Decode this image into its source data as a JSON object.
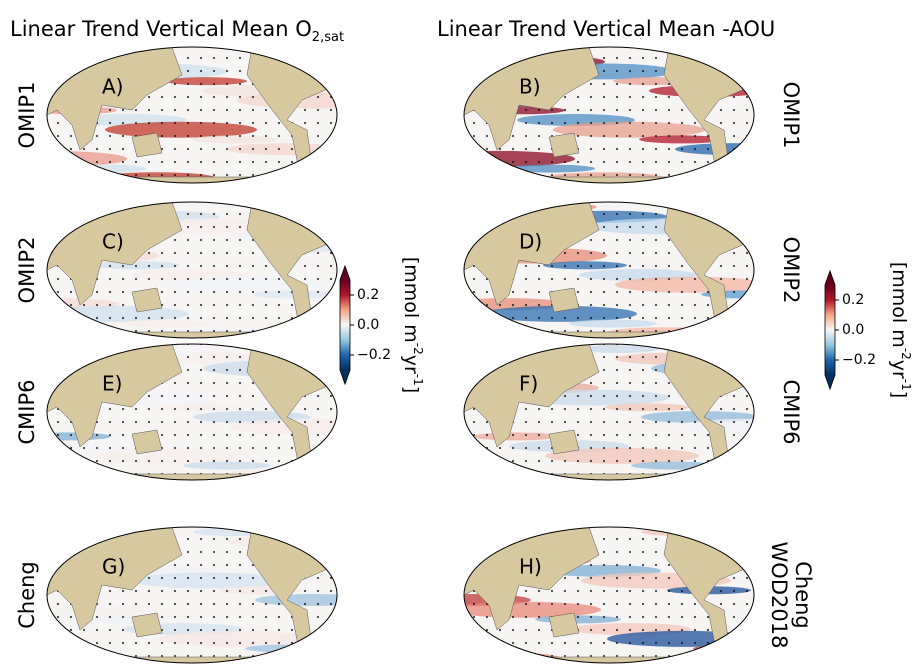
{
  "titles": [
    {
      "text": "Linear Trend Vertical Mean O",
      "subscript": "2,sat"
    },
    {
      "text": "Linear Trend Vertical Mean -AOU"
    }
  ],
  "panels": [
    {
      "letter": "A)",
      "label": [
        "OMIP1"
      ]
    },
    {
      "letter": "B)",
      "label": [
        "OMIP1"
      ]
    },
    {
      "letter": "C)",
      "label": [
        "OMIP2"
      ]
    },
    {
      "letter": "D)",
      "label": [
        "OMIP2"
      ]
    },
    {
      "letter": "E)",
      "label": [
        "CMIP6"
      ]
    },
    {
      "letter": "F)",
      "label": [
        "CMIP6"
      ]
    },
    {
      "letter": "G)",
      "label": [
        "Cheng"
      ]
    },
    {
      "letter": "H)",
      "label": [
        "WOD2018",
        "Cheng"
      ]
    }
  ],
  "colorbars": [
    {
      "label": [
        "[mmol m",
        "-2",
        "yr",
        "-1",
        "]"
      ],
      "lim": [
        -0.3,
        0.3
      ],
      "ticks": [
        0.2,
        {
          "value": 0,
          "label": "0.0"
        },
        {
          "value": -0.2,
          "label": "−0.2"
        }
      ]
    },
    {
      "label": [
        "[mmol m",
        "-2",
        "yr",
        "-1",
        "]"
      ],
      "lim": [
        -0.3,
        0.3
      ],
      "ticks": [
        0.2,
        {
          "value": 0,
          "label": "0.0"
        },
        {
          "value": -0.2,
          "label": "−0.2"
        }
      ]
    }
  ]
}
